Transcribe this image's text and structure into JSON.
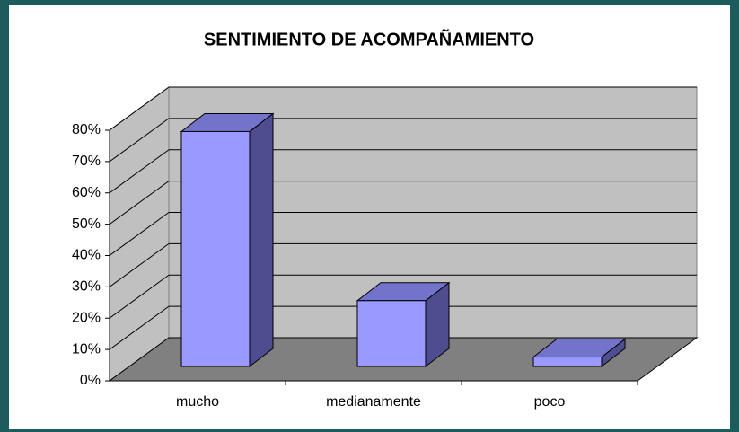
{
  "chart_data": {
    "type": "bar",
    "title": "SENTIMIENTO DE ACOMPAÑAMIENTO",
    "categories": [
      "mucho",
      "medianamente",
      "poco"
    ],
    "values": [
      75,
      21,
      3
    ],
    "color": "#9999ff",
    "ylim": [
      0,
      80
    ],
    "yticks": [
      {
        "value": 0,
        "label": "0%"
      },
      {
        "value": 10,
        "label": "10%"
      },
      {
        "value": 20,
        "label": "20%"
      },
      {
        "value": 30,
        "label": "30%"
      },
      {
        "value": 40,
        "label": "40%"
      },
      {
        "value": 50,
        "label": "50%"
      },
      {
        "value": 60,
        "label": "60%"
      },
      {
        "value": 70,
        "label": "70%"
      },
      {
        "value": 80,
        "label": "80%"
      }
    ],
    "grid": true
  }
}
